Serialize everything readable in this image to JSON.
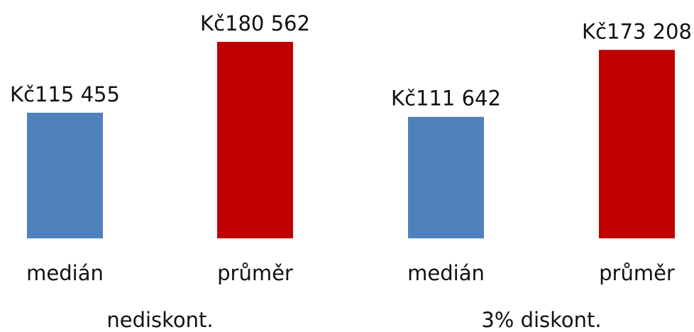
{
  "chart_data": {
    "type": "bar",
    "groups": [
      {
        "label": "nediskont.",
        "bars": [
          {
            "category": "medián",
            "value": 115455,
            "value_label": "Kč115 455",
            "color": "#4f81bd"
          },
          {
            "category": "průměr",
            "value": 180562,
            "value_label": "Kč180 562",
            "color": "#c00000"
          }
        ]
      },
      {
        "label": "3% diskont.",
        "bars": [
          {
            "category": "medián",
            "value": 111642,
            "value_label": "Kč111 642",
            "color": "#4f81bd"
          },
          {
            "category": "průměr",
            "value": 173208,
            "value_label": "Kč173 208",
            "color": "#c00000"
          }
        ]
      }
    ],
    "title": "",
    "xlabel": "",
    "ylabel": "",
    "ylim": [
      0,
      180562
    ],
    "grid": false,
    "legend": "none"
  }
}
